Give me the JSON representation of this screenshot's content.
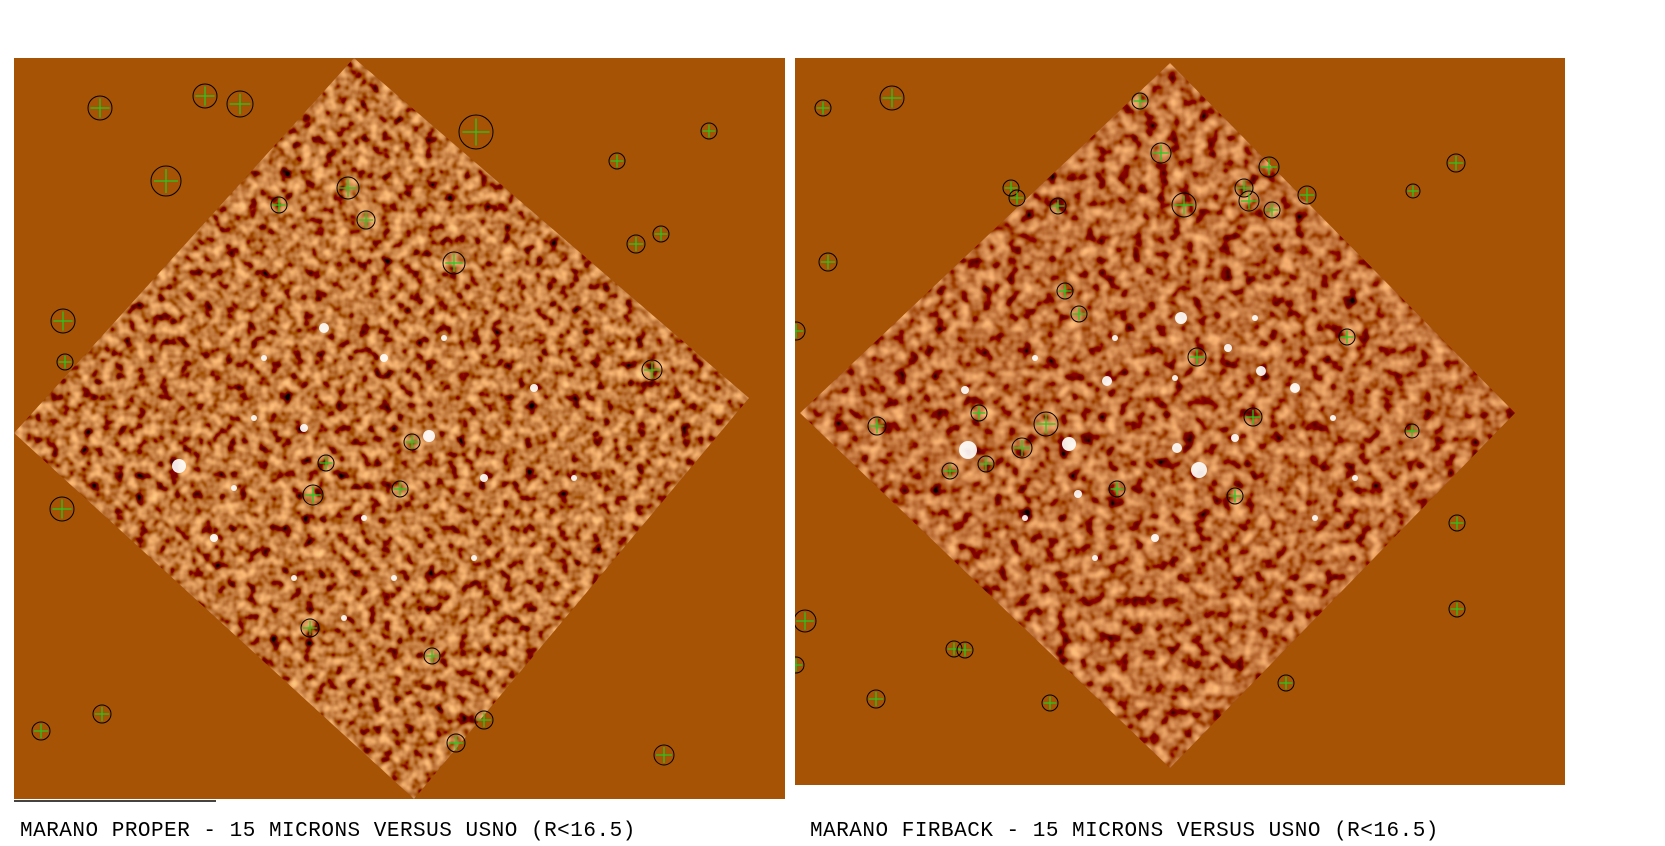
{
  "panels": [
    {
      "id": "marano-proper",
      "caption": "MARANO PROPER - 15 MICRONS VERSUS USNO (R<16.5)"
    },
    {
      "id": "marano-firback",
      "caption": "MARANO FIRBACK - 15 MICRONS VERSUS USNO (R<16.5)"
    }
  ],
  "colors": {
    "background_field": "#a65305",
    "marker_circle": "#000000",
    "marker_cross": "#22cc22",
    "bright_source": "#ffffff",
    "dark_noise": "#000000",
    "mid_tone": "#e8862a"
  }
}
